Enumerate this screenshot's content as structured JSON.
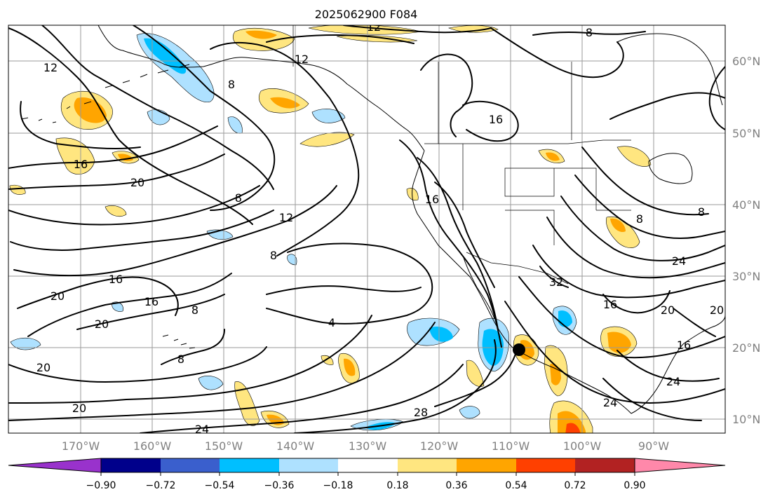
{
  "title": "2025062900 F084",
  "longitude_ticks": [
    "170°W",
    "160°W",
    "150°W",
    "140°W",
    "130°W",
    "120°W",
    "110°W",
    "100°W",
    "90°W"
  ],
  "latitude_ticks": [
    "60°N",
    "50°N",
    "40°N",
    "30°N",
    "20°N",
    "10°N"
  ],
  "colorbar": {
    "levels": [
      "−0.90",
      "−0.72",
      "−0.54",
      "−0.36",
      "−0.18",
      "0.18",
      "0.36",
      "0.54",
      "0.72",
      "0.90"
    ],
    "colors": [
      "#9932cc",
      "#00008b",
      "#3a5fcd",
      "#00bfff",
      "#aee1ff",
      "#ffffff",
      "#ffe680",
      "#ffa500",
      "#ff4000",
      "#b22222",
      "#ff88aa"
    ]
  },
  "contour_labels": [
    "12",
    "12",
    "8",
    "8",
    "16",
    "12",
    "16",
    "20",
    "8",
    "12",
    "8",
    "16",
    "16",
    "20",
    "16",
    "8",
    "4",
    "20",
    "20",
    "8",
    "20",
    "8",
    "8",
    "24",
    "16",
    "20",
    "20",
    "16",
    "24",
    "24",
    "32",
    "28",
    "24"
  ],
  "marker": "storm-center"
}
